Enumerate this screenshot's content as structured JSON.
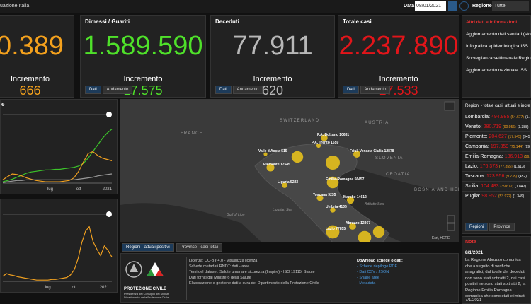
{
  "header": {
    "title": "uazione Italia",
    "date_label": "Data",
    "date_value": "08/01/2021",
    "region_label": "Regione",
    "region_value": "Tutte"
  },
  "kpis": [
    {
      "value": "0.389",
      "increment_label": "Incremento",
      "increment": "666",
      "color": "#f4a11d"
    },
    {
      "title": "Dimessi / Guariti",
      "value": "1.589.590",
      "increment_label": "Incremento",
      "increment": "17.575",
      "color": "#4fe12a",
      "tabs": [
        "Dati",
        "Andamento"
      ]
    },
    {
      "title": "Deceduti",
      "value": "77.911",
      "increment_label": "Incremento",
      "increment": "620",
      "color": "#b8b8b8",
      "tabs": [
        "Dati",
        "Andamento"
      ]
    },
    {
      "title": "Totale casi",
      "value": "2.237.890",
      "increment_label": "Incremento",
      "increment": "17.533",
      "color": "#e3151a",
      "tabs": [
        "Dati",
        "Andamento"
      ]
    }
  ],
  "info": {
    "title": "Altri dati e informazioni",
    "links": [
      "Aggiornamento dati sanitari (storico)",
      "Infografica epidemiologica ISS",
      "Sorveglianza settimanale Regioni",
      "Aggiornamento nazionale ISS"
    ]
  },
  "charts": [
    {
      "type": "line",
      "title": "e",
      "categories": [
        null,
        null,
        null,
        null,
        null,
        null,
        null,
        null,
        null,
        null,
        "lug",
        null,
        null,
        null,
        null,
        null,
        "ott",
        null,
        null,
        null,
        null,
        null,
        "2021",
        null
      ],
      "ylim": [
        0,
        100
      ],
      "series": [
        {
          "color": "#3cc62a",
          "values": [
            2,
            4,
            6,
            9,
            12,
            15,
            17,
            18,
            19,
            20,
            20,
            21,
            21,
            22,
            23,
            24,
            26,
            30,
            38,
            48,
            58,
            68,
            76,
            82
          ]
        },
        {
          "color": "#f0a020",
          "values": [
            5,
            10,
            14,
            13,
            11,
            8,
            6,
            4,
            3,
            2,
            2,
            2,
            2,
            3,
            4,
            8,
            18,
            32,
            45,
            48,
            42,
            38,
            36,
            34
          ]
        },
        {
          "color": "#9a9a9a",
          "values": [
            1,
            2,
            3,
            4,
            4,
            5,
            5,
            5,
            5,
            5,
            5,
            5,
            5,
            5,
            5,
            5,
            6,
            7,
            8,
            9,
            11,
            12,
            13,
            14
          ]
        }
      ]
    },
    {
      "type": "line",
      "title": "",
      "categories": [
        null,
        null,
        null,
        null,
        null,
        null,
        null,
        null,
        null,
        null,
        null,
        null,
        "lug",
        null,
        null,
        null,
        null,
        null,
        null,
        "ott",
        null,
        null,
        null,
        null,
        null,
        null,
        null,
        "2021",
        null,
        null
      ],
      "ylim": [
        0,
        100
      ],
      "series": [
        {
          "color": "#f0a020",
          "values": [
            8,
            12,
            10,
            9,
            7,
            6,
            5,
            4,
            3,
            2,
            2,
            2,
            2,
            3,
            3,
            4,
            5,
            6,
            10,
            18,
            35,
            60,
            78,
            85,
            62,
            50,
            40,
            55,
            48,
            38
          ]
        }
      ]
    }
  ],
  "map": {
    "labels": [
      "FRANCE",
      "SWITZERLAND",
      "AUSTRIA",
      "SLOVENIA",
      "CROATIA",
      "BOSNIA AND HERZEGOVINA",
      "Gulf of Lion",
      "Ligurian Sea",
      "Adriatic Sea"
    ],
    "attribution": "Esri, HERE",
    "color": "#e6c01c",
    "bubbles": [
      {
        "value": 54677
      },
      {
        "label": "P.A. Bolzano 10631",
        "value": 10631
      },
      {
        "label": "P.A. Trento 1659",
        "value": 1659
      },
      {
        "label": "Valle d'Aosta 515",
        "value": 515
      },
      {
        "label": "Piemonte 17545",
        "value": 17545
      },
      {
        "label": "Friuli Venezia Giulia 12878",
        "value": 12878
      },
      {
        "value": 90956
      },
      {
        "label": "Liguria 5223",
        "value": 5223
      },
      {
        "label": "Emilia-Romagna 56457",
        "value": 56457
      },
      {
        "label": "Toscana 9235",
        "value": 9235
      },
      {
        "label": "Marche 14612",
        "value": 14612
      },
      {
        "label": "Umbria 4135",
        "value": 4135
      },
      {
        "label": "Abruzzo 12367",
        "value": 12367
      },
      {
        "label": "Lazio 77855",
        "value": 77855
      },
      {
        "value": 75144
      },
      {
        "value": 53922
      }
    ],
    "tabs": [
      "Regioni - attuali positivi",
      "Province - casi totali"
    ]
  },
  "regions": {
    "title": "Regioni - totale casi, attuali e incrementi",
    "rows": [
      [
        "Lombardia:",
        "494.985",
        "(54.677)",
        "(1.?)"
      ],
      [
        "Veneto:",
        "280.719",
        "(90.956)",
        "(3.388)"
      ],
      [
        "Piemonte:",
        "204.627",
        "(17.545)",
        "(945)"
      ],
      [
        "Campania:",
        "197.359",
        "(75.144)",
        "(998)"
      ],
      [
        "Emilia-Romagna:",
        "186.913",
        "(56.457)",
        "(2.?)"
      ],
      [
        "Lazio:",
        "176.373",
        "(77.855)",
        "(1.613)"
      ],
      [
        "Toscana:",
        "123.956",
        "(9.235)",
        "(452)"
      ],
      [
        "Sicilia:",
        "104.483",
        "(39.672)",
        "(1.842)"
      ],
      [
        "Puglia:",
        "98.952",
        "(53.922)",
        "(1.349)"
      ]
    ],
    "tabs": [
      "Regioni",
      "Province"
    ]
  },
  "note": {
    "title": "Note",
    "date": "8/1/2021",
    "text": "La Regione Abruzzo comunica che a seguito di verifiche anagrafici, dal totale dei deceduti non sono stati sottratti 2, dai casi positivi ne sono stati sottratti 2, la Regione Emilia Romagna comunica che sono stati eliminati 2 casi dai dati comunicati in quanto giudicati non casi COVID.",
    "next_date": "7/1/2021"
  },
  "footer": {
    "logo": [
      "PROTEZIONE CIVILE",
      "Presidenza del Consiglio dei Ministri",
      "Dipartimento della Protezione Civile"
    ],
    "license": [
      "Licenza: CC-BY-4.0 - Visualizza licenza",
      "Schede metadati RNDT: dati - aree",
      "Temi del dataset: Salute umana e sicurezza (Inspire) - ISO 19115: Salute",
      "Dati forniti dal Ministero della Salute",
      "Elaborazione e gestione dati a cura del Dipartimento della Protezione Civile"
    ],
    "download_title": "Download schede o dati:",
    "downloads": [
      "- Schede riepilogo PDF",
      "- Dati CSV / JSON",
      "- Shape aree",
      "- Metadata"
    ]
  }
}
